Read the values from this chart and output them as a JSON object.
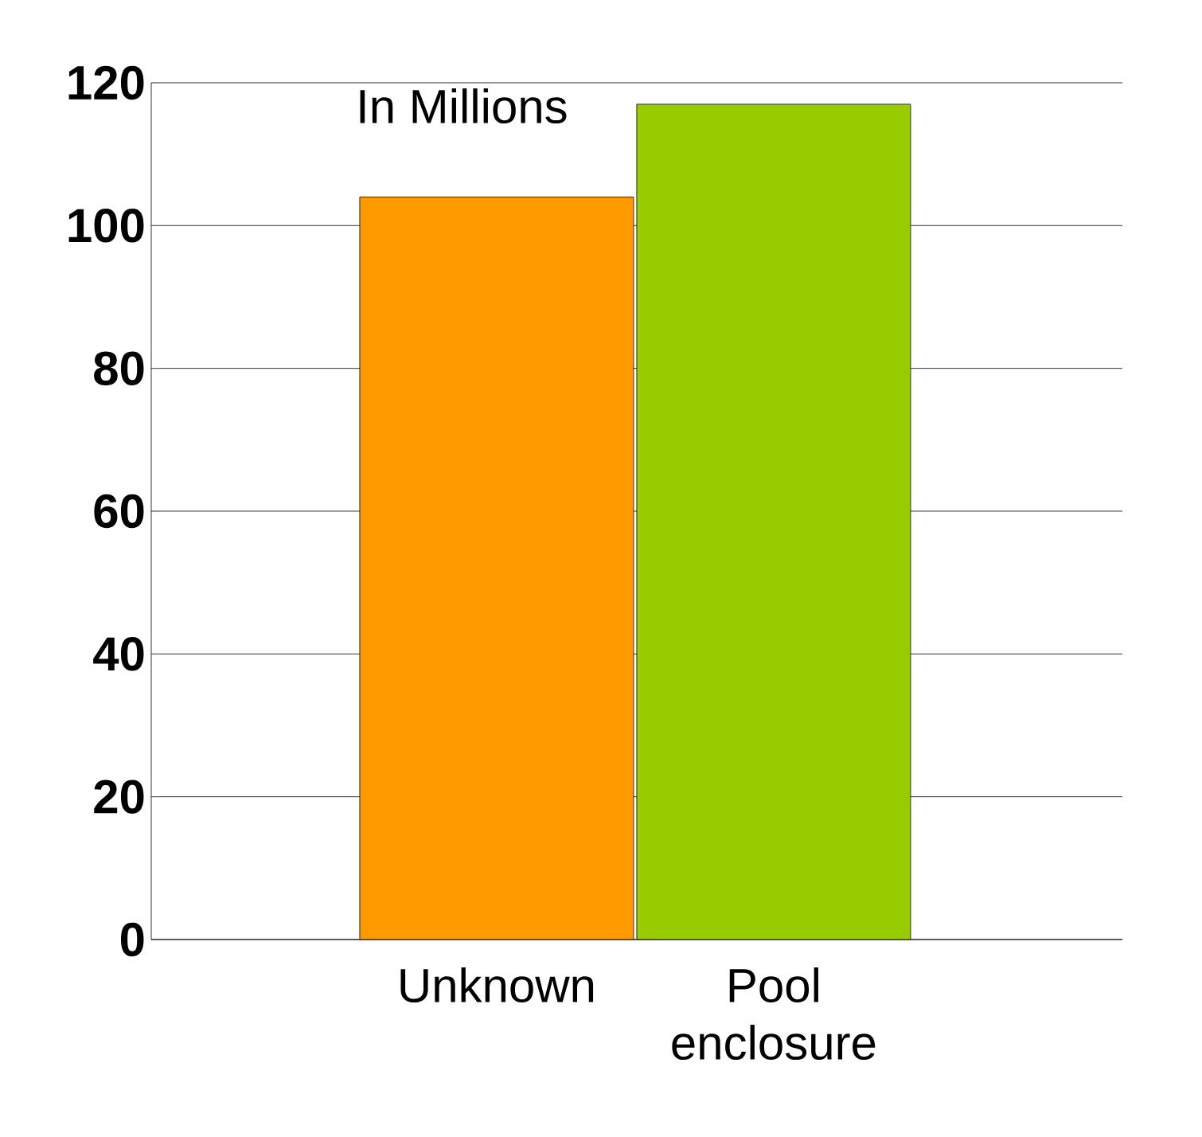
{
  "chart_data": {
    "type": "bar",
    "categories": [
      "Unknown",
      "Pool enclosure"
    ],
    "values": [
      104,
      117
    ],
    "colors": [
      "#ff9900",
      "#99cc00"
    ],
    "ylim": [
      0,
      120
    ],
    "yticks": [
      0,
      20,
      40,
      60,
      80,
      100,
      120
    ],
    "grid": "y",
    "annotations": [
      "In Millions"
    ]
  }
}
